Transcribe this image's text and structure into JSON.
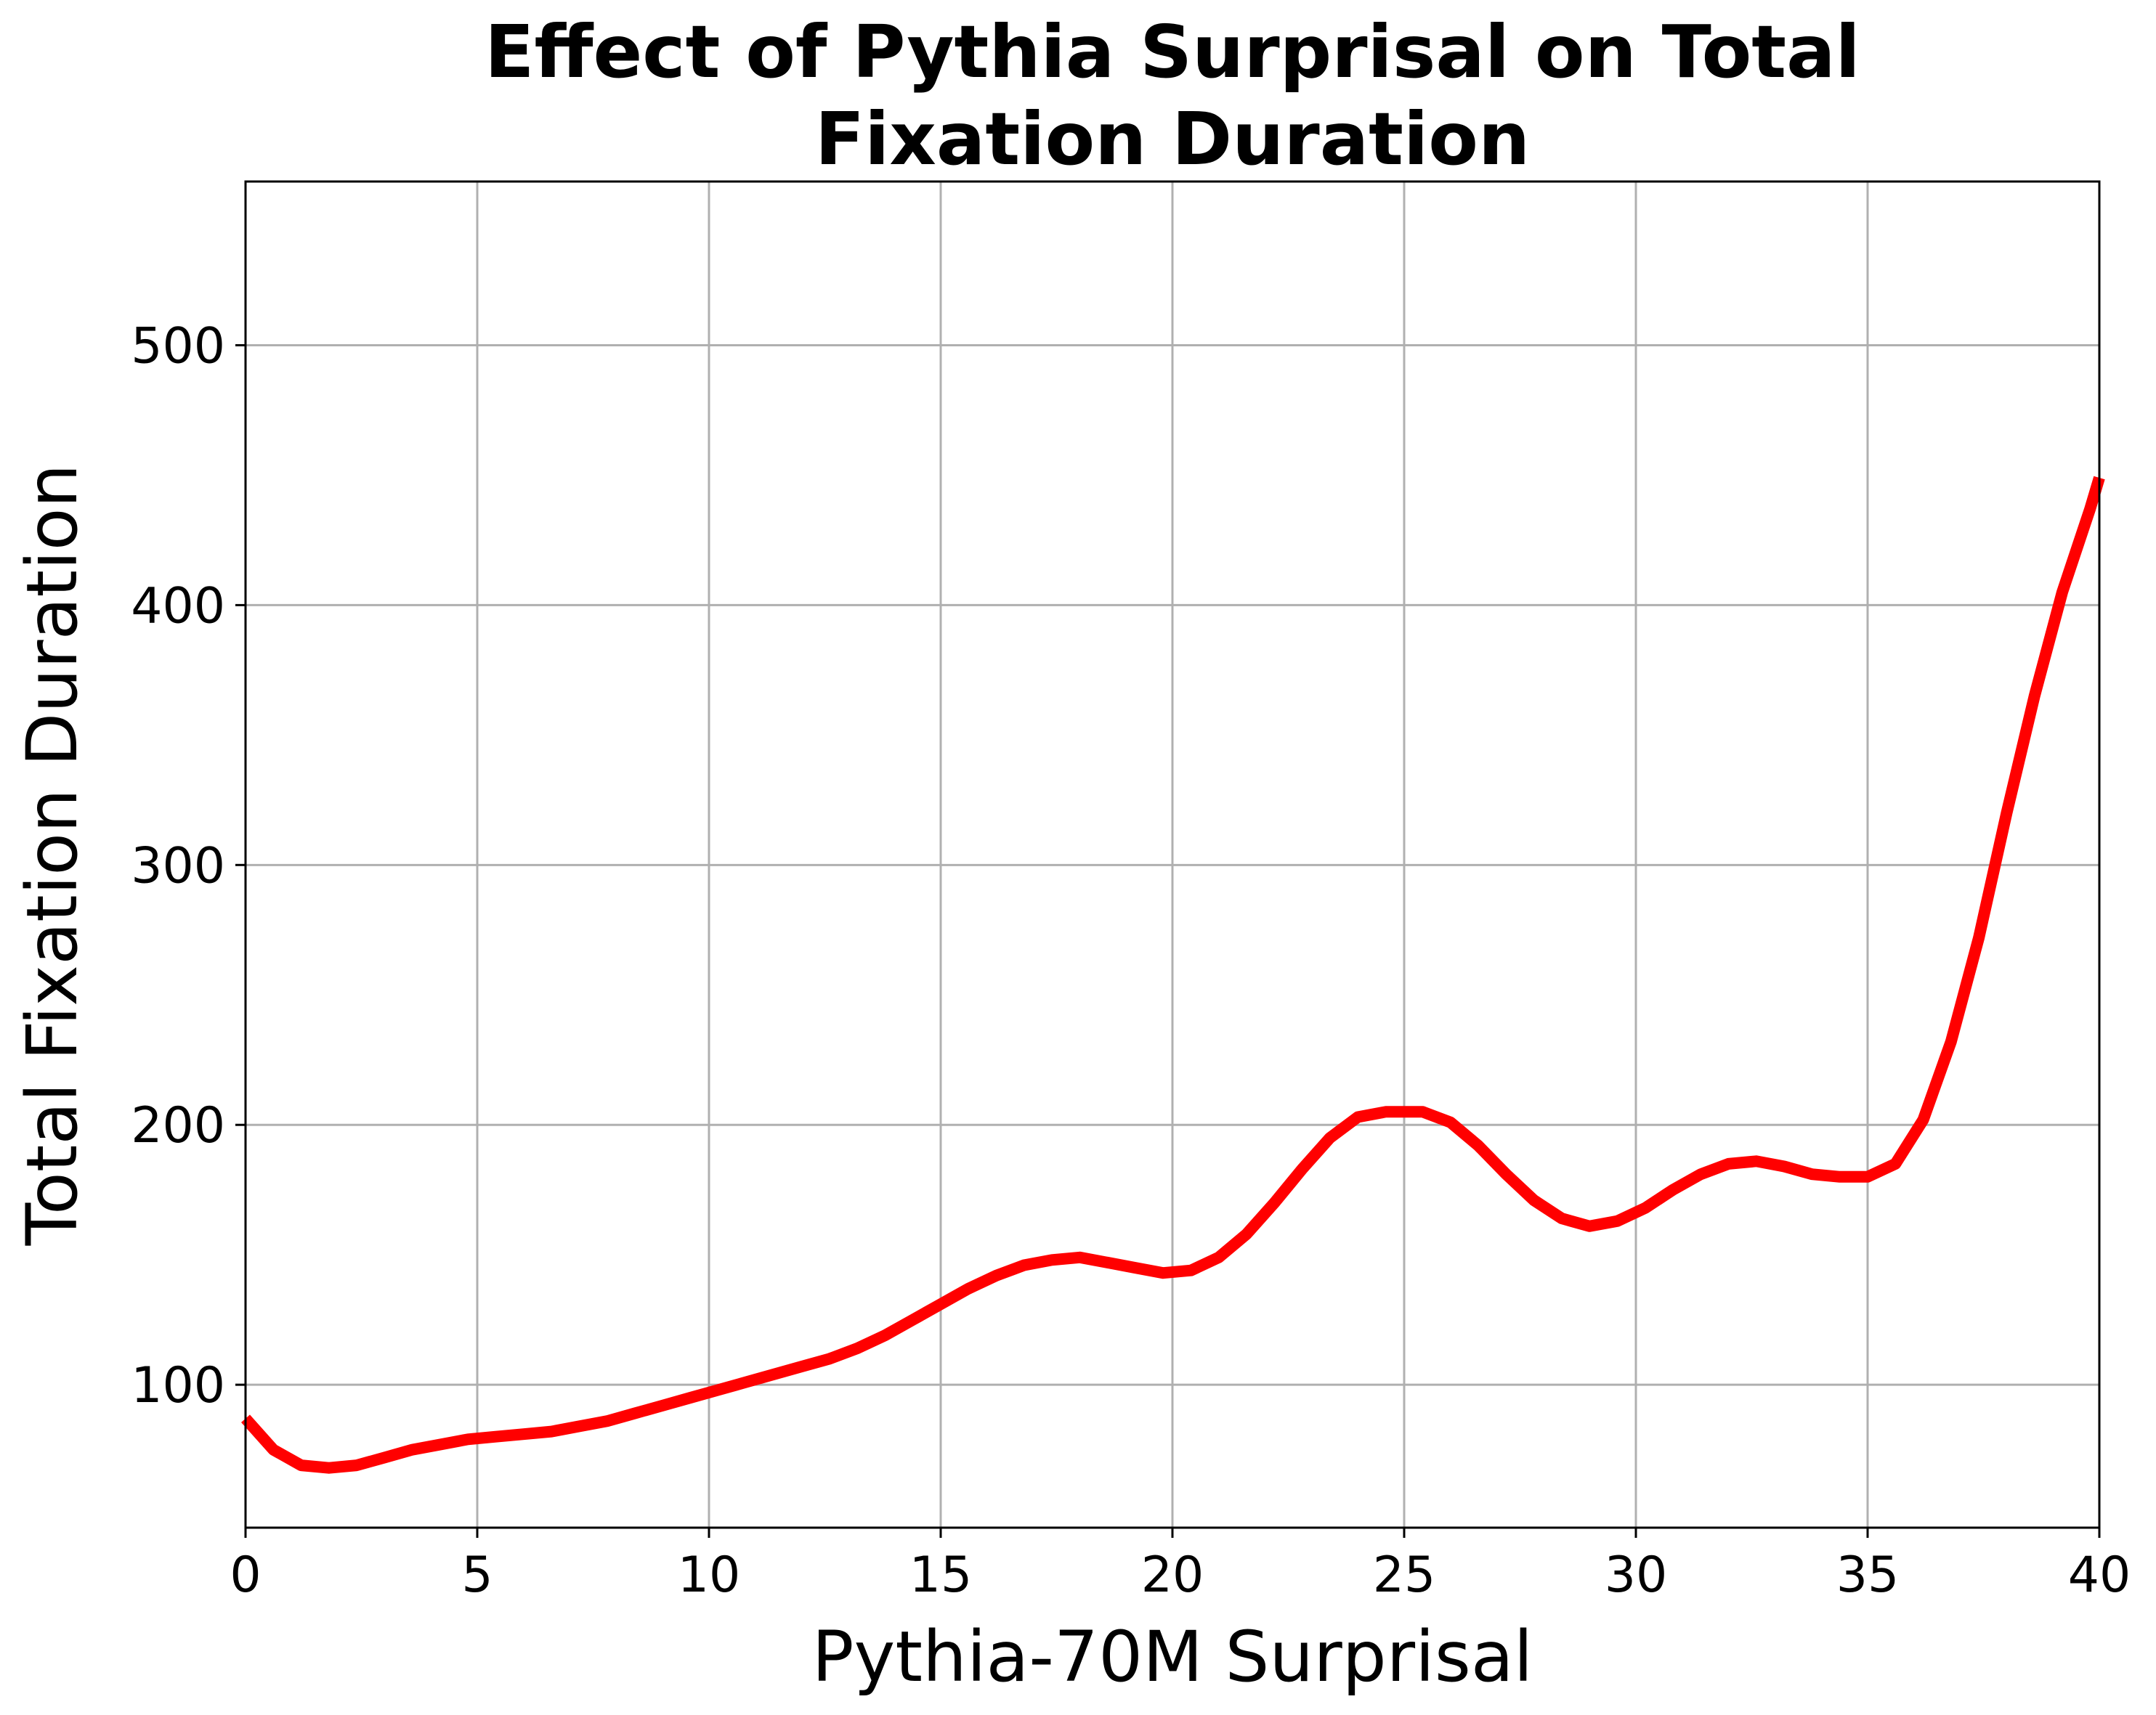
{
  "chart_data": {
    "type": "line",
    "title": [
      "Effect of Pythia Surprisal on Total",
      "Fixation Duration"
    ],
    "xlabel": "Pythia-70M Surprisal",
    "ylabel": "Total Fixation Duration",
    "xlim": [
      0,
      40
    ],
    "ylim": [
      45,
      563
    ],
    "xticks": [
      0,
      5,
      10,
      15,
      20,
      25,
      30,
      35,
      40
    ],
    "yticks": [
      100,
      200,
      300,
      400,
      500
    ],
    "grid": true,
    "legend": "none",
    "series": [
      {
        "color": "#ff0000",
        "x": [
          0,
          0.6,
          1.2,
          1.8,
          2.4,
          3.0,
          3.6,
          4.2,
          4.8,
          5.4,
          6.0,
          6.6,
          7.2,
          7.8,
          8.4,
          9.0,
          9.6,
          10.2,
          10.8,
          11.4,
          12.0,
          12.6,
          13.2,
          13.8,
          14.4,
          15.0,
          15.6,
          16.2,
          16.8,
          17.4,
          18.0,
          18.6,
          19.2,
          19.8,
          20.4,
          21.0,
          21.6,
          22.2,
          22.8,
          23.4,
          24.0,
          24.6,
          25.2,
          25.4,
          26.0,
          26.6,
          27.2,
          27.8,
          28.4,
          29.0,
          29.6,
          30.2,
          30.8,
          31.4,
          32.0,
          32.6,
          33.2,
          33.8,
          34.4,
          35.0,
          35.6,
          36.2,
          36.8,
          37.4,
          38.0,
          38.6,
          39.2,
          39.8,
          40.0
        ],
        "y": [
          87,
          75,
          69,
          68,
          69,
          72,
          75,
          77,
          79,
          80,
          81,
          82,
          84,
          86,
          89,
          92,
          95,
          98,
          101,
          104,
          107,
          110,
          114,
          119,
          125,
          131,
          137,
          142,
          146,
          148,
          149,
          147,
          145,
          143,
          144,
          149,
          158,
          170,
          183,
          195,
          203,
          205,
          205,
          205,
          201,
          192,
          181,
          171,
          164,
          161,
          163,
          168,
          175,
          181,
          185,
          186,
          184,
          181,
          180,
          180,
          185,
          202,
          232,
          272,
          320,
          365,
          405,
          437,
          449
        ]
      }
    ]
  }
}
